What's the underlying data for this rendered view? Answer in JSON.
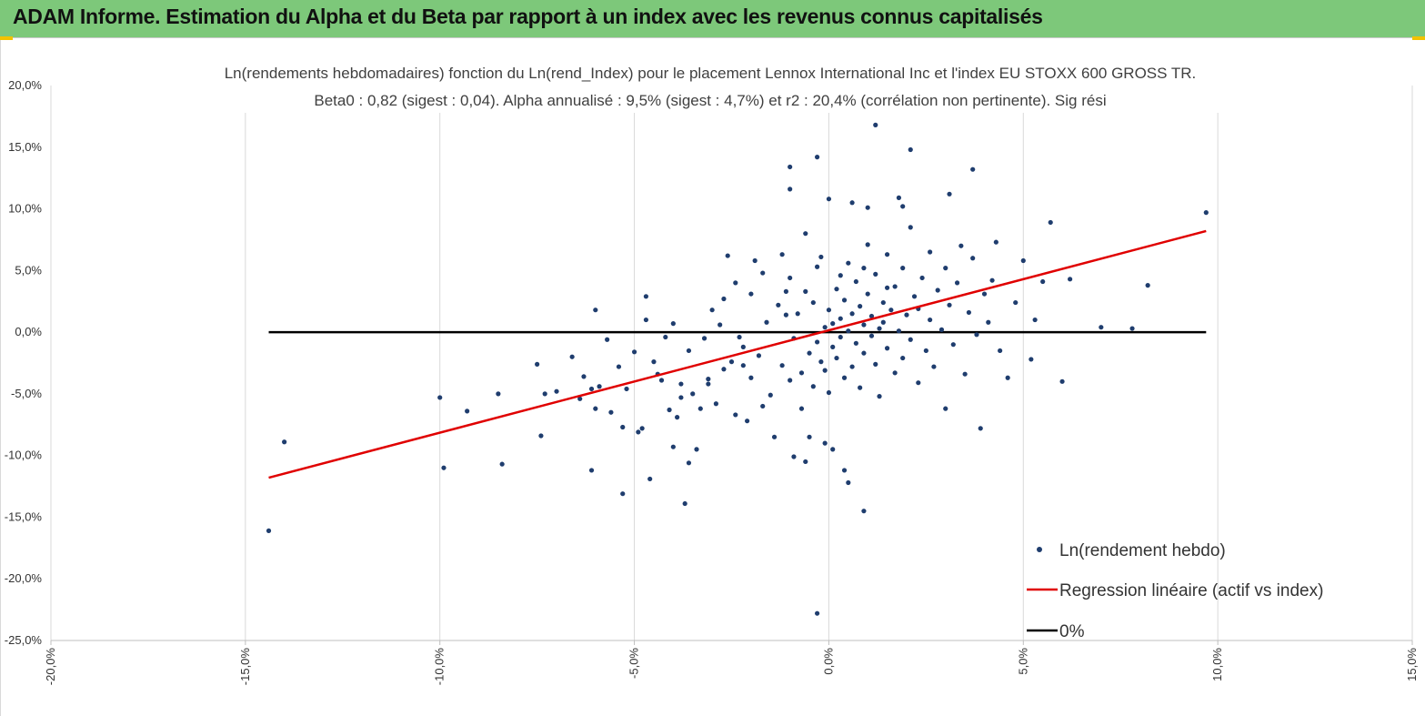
{
  "banner": {
    "title": "ADAM Informe. Estimation du Alpha et du Beta par rapport à un index avec les revenus connus capitalisés"
  },
  "colors": {
    "banner": "#7dc87a",
    "points": "#1f3d6e",
    "regression": "#e00000",
    "zero_line": "#000000",
    "grid": "#d9d9d9"
  },
  "chart_data": {
    "type": "scatter",
    "title": "Ln(rendements hebdomadaires) fonction du Ln(rend_Index) pour le placement Lennox International Inc et l'index EU STOXX 600 GROSS TR.",
    "subtitle": "Beta0 : 0,82 (sigest : 0,04). Alpha annualisé : 9,5% (sigest : 4,7%) et r2 : 20,4% (corrélation non pertinente). Sig rési",
    "xlabel": "",
    "ylabel": "",
    "xlim": [
      -0.2,
      0.15
    ],
    "ylim": [
      -0.25,
      0.2
    ],
    "grid": "vertical",
    "legend_position": "bottom-right",
    "x_ticks": [
      "-20,0%",
      "-15,0%",
      "-10,0%",
      "-5,0%",
      "0,0%",
      "5,0%",
      "10,0%",
      "15,0%"
    ],
    "y_ticks": [
      "20,0%",
      "15,0%",
      "10,0%",
      "5,0%",
      "0,0%",
      "-5,0%",
      "-10,0%",
      "-15,0%",
      "-20,0%",
      "-25,0%"
    ],
    "series": [
      {
        "name": "Ln(rendement hebdo)",
        "kind": "scatter",
        "points": [
          [
            -0.144,
            -0.161
          ],
          [
            -0.14,
            -0.089
          ],
          [
            -0.1,
            -0.053
          ],
          [
            -0.099,
            -0.11
          ],
          [
            -0.093,
            -0.064
          ],
          [
            -0.085,
            -0.05
          ],
          [
            -0.084,
            -0.107
          ],
          [
            -0.075,
            -0.026
          ],
          [
            -0.074,
            -0.084
          ],
          [
            -0.073,
            -0.05
          ],
          [
            -0.07,
            -0.048
          ],
          [
            -0.066,
            -0.02
          ],
          [
            -0.064,
            -0.054
          ],
          [
            -0.063,
            -0.036
          ],
          [
            -0.061,
            -0.046
          ],
          [
            -0.061,
            -0.112
          ],
          [
            -0.059,
            -0.044
          ],
          [
            -0.06,
            -0.062
          ],
          [
            -0.06,
            0.018
          ],
          [
            -0.057,
            -0.006
          ],
          [
            -0.056,
            -0.065
          ],
          [
            -0.054,
            -0.028
          ],
          [
            -0.053,
            -0.077
          ],
          [
            -0.053,
            -0.131
          ],
          [
            -0.052,
            -0.046
          ],
          [
            -0.05,
            -0.016
          ],
          [
            -0.049,
            -0.081
          ],
          [
            -0.048,
            -0.078
          ],
          [
            -0.047,
            0.01
          ],
          [
            -0.047,
            0.029
          ],
          [
            -0.046,
            -0.119
          ],
          [
            -0.045,
            -0.024
          ],
          [
            -0.044,
            -0.034
          ],
          [
            -0.043,
            -0.039
          ],
          [
            -0.042,
            -0.004
          ],
          [
            -0.041,
            -0.063
          ],
          [
            -0.04,
            0.007
          ],
          [
            -0.04,
            -0.093
          ],
          [
            -0.039,
            -0.069
          ],
          [
            -0.038,
            -0.042
          ],
          [
            -0.038,
            -0.053
          ],
          [
            -0.037,
            -0.139
          ],
          [
            -0.036,
            -0.015
          ],
          [
            -0.036,
            -0.106
          ],
          [
            -0.035,
            -0.05
          ],
          [
            -0.034,
            -0.095
          ],
          [
            -0.033,
            -0.062
          ],
          [
            -0.032,
            -0.005
          ],
          [
            -0.031,
            -0.038
          ],
          [
            -0.03,
            0.018
          ],
          [
            -0.029,
            -0.058
          ],
          [
            -0.028,
            0.006
          ],
          [
            -0.027,
            -0.03
          ],
          [
            -0.026,
            0.062
          ],
          [
            -0.025,
            -0.024
          ],
          [
            -0.024,
            -0.067
          ],
          [
            -0.024,
            0.04
          ],
          [
            -0.023,
            -0.004
          ],
          [
            -0.022,
            -0.012
          ],
          [
            -0.021,
            -0.072
          ],
          [
            -0.02,
            0.031
          ],
          [
            -0.02,
            -0.037
          ],
          [
            -0.019,
            0.058
          ],
          [
            -0.018,
            -0.019
          ],
          [
            -0.017,
            -0.06
          ],
          [
            -0.016,
            0.008
          ],
          [
            -0.015,
            -0.051
          ],
          [
            -0.014,
            -0.085
          ],
          [
            -0.013,
            0.022
          ],
          [
            -0.012,
            -0.027
          ],
          [
            -0.011,
            0.014
          ],
          [
            -0.01,
            0.044
          ],
          [
            -0.01,
            -0.039
          ],
          [
            -0.009,
            -0.101
          ],
          [
            -0.009,
            -0.005
          ],
          [
            -0.008,
            0.015
          ],
          [
            -0.007,
            -0.033
          ],
          [
            -0.007,
            -0.062
          ],
          [
            -0.006,
            0.033
          ],
          [
            -0.006,
            0.08
          ],
          [
            -0.005,
            -0.017
          ],
          [
            -0.005,
            -0.085
          ],
          [
            -0.004,
            0.024
          ],
          [
            -0.004,
            -0.044
          ],
          [
            -0.003,
            0.053
          ],
          [
            -0.003,
            -0.008
          ],
          [
            -0.002,
            0.061
          ],
          [
            -0.002,
            -0.024
          ],
          [
            -0.001,
            0.004
          ],
          [
            -0.001,
            -0.031
          ],
          [
            0.0,
            0.018
          ],
          [
            0.0,
            -0.049
          ],
          [
            0.001,
            0.007
          ],
          [
            0.001,
            -0.012
          ],
          [
            0.002,
            0.035
          ],
          [
            0.002,
            -0.021
          ],
          [
            0.003,
            0.011
          ],
          [
            0.003,
            -0.004
          ],
          [
            0.004,
            0.026
          ],
          [
            0.004,
            -0.037
          ],
          [
            0.005,
            0.056
          ],
          [
            0.005,
            0.001
          ],
          [
            0.006,
            0.015
          ],
          [
            0.006,
            -0.028
          ],
          [
            0.007,
            0.041
          ],
          [
            0.007,
            -0.009
          ],
          [
            0.008,
            0.021
          ],
          [
            0.008,
            -0.045
          ],
          [
            0.009,
            0.006
          ],
          [
            0.009,
            -0.017
          ],
          [
            0.01,
            0.031
          ],
          [
            0.01,
            0.071
          ],
          [
            0.011,
            -0.003
          ],
          [
            0.011,
            0.013
          ],
          [
            0.012,
            -0.026
          ],
          [
            0.012,
            0.047
          ],
          [
            0.013,
            0.003
          ],
          [
            0.013,
            -0.052
          ],
          [
            0.014,
            0.024
          ],
          [
            0.014,
            0.008
          ],
          [
            0.015,
            -0.013
          ],
          [
            0.015,
            0.063
          ],
          [
            0.016,
            0.018
          ],
          [
            0.017,
            -0.033
          ],
          [
            0.017,
            0.037
          ],
          [
            0.018,
            0.001
          ],
          [
            0.019,
            0.052
          ],
          [
            0.019,
            -0.021
          ],
          [
            0.02,
            0.014
          ],
          [
            0.021,
            0.085
          ],
          [
            0.021,
            -0.006
          ],
          [
            0.022,
            0.029
          ],
          [
            0.023,
            -0.041
          ],
          [
            0.023,
            0.019
          ],
          [
            0.024,
            0.044
          ],
          [
            0.025,
            -0.015
          ],
          [
            0.026,
            0.01
          ],
          [
            0.026,
            0.065
          ],
          [
            0.027,
            -0.028
          ],
          [
            0.028,
            0.034
          ],
          [
            0.029,
            0.002
          ],
          [
            0.03,
            0.052
          ],
          [
            0.03,
            -0.062
          ],
          [
            0.031,
            0.022
          ],
          [
            0.032,
            -0.01
          ],
          [
            0.033,
            0.04
          ],
          [
            0.034,
            0.07
          ],
          [
            0.035,
            -0.034
          ],
          [
            0.036,
            0.016
          ],
          [
            0.037,
            0.06
          ],
          [
            0.038,
            -0.002
          ],
          [
            0.039,
            -0.078
          ],
          [
            0.04,
            0.031
          ],
          [
            0.041,
            0.008
          ],
          [
            0.042,
            0.042
          ],
          [
            0.043,
            0.073
          ],
          [
            0.044,
            -0.015
          ],
          [
            0.046,
            -0.037
          ],
          [
            0.048,
            0.024
          ],
          [
            0.05,
            0.058
          ],
          [
            0.052,
            -0.022
          ],
          [
            0.053,
            0.01
          ],
          [
            0.055,
            0.041
          ],
          [
            0.057,
            0.089
          ],
          [
            0.06,
            -0.04
          ],
          [
            0.062,
            0.043
          ],
          [
            0.07,
            0.004
          ],
          [
            0.078,
            0.003
          ],
          [
            0.082,
            0.038
          ],
          [
            0.097,
            0.097
          ],
          [
            0.012,
            0.168
          ],
          [
            0.021,
            0.148
          ],
          [
            0.037,
            0.132
          ],
          [
            -0.01,
            0.134
          ],
          [
            -0.003,
            0.142
          ],
          [
            -0.01,
            0.116
          ],
          [
            0.0,
            0.108
          ],
          [
            0.006,
            0.105
          ],
          [
            0.01,
            0.101
          ],
          [
            0.018,
            0.109
          ],
          [
            0.019,
            0.102
          ],
          [
            0.031,
            0.112
          ],
          [
            0.001,
            -0.095
          ],
          [
            -0.001,
            -0.09
          ],
          [
            0.004,
            -0.112
          ],
          [
            0.005,
            -0.122
          ],
          [
            0.009,
            -0.145
          ],
          [
            -0.003,
            -0.228
          ],
          [
            -0.006,
            -0.105
          ],
          [
            -0.012,
            0.063
          ],
          [
            -0.017,
            0.048
          ],
          [
            -0.022,
            -0.027
          ],
          [
            -0.027,
            0.027
          ],
          [
            -0.031,
            -0.042
          ],
          [
            0.015,
            0.036
          ],
          [
            0.009,
            0.052
          ],
          [
            -0.011,
            0.033
          ],
          [
            0.003,
            0.046
          ]
        ]
      },
      {
        "name": "Regression linéaire (actif vs index)",
        "kind": "line",
        "x": [
          -0.144,
          0.097
        ],
        "y": [
          -0.118,
          0.082
        ]
      },
      {
        "name": "0%",
        "kind": "line",
        "x": [
          -0.144,
          0.097
        ],
        "y": [
          0,
          0
        ]
      }
    ]
  }
}
